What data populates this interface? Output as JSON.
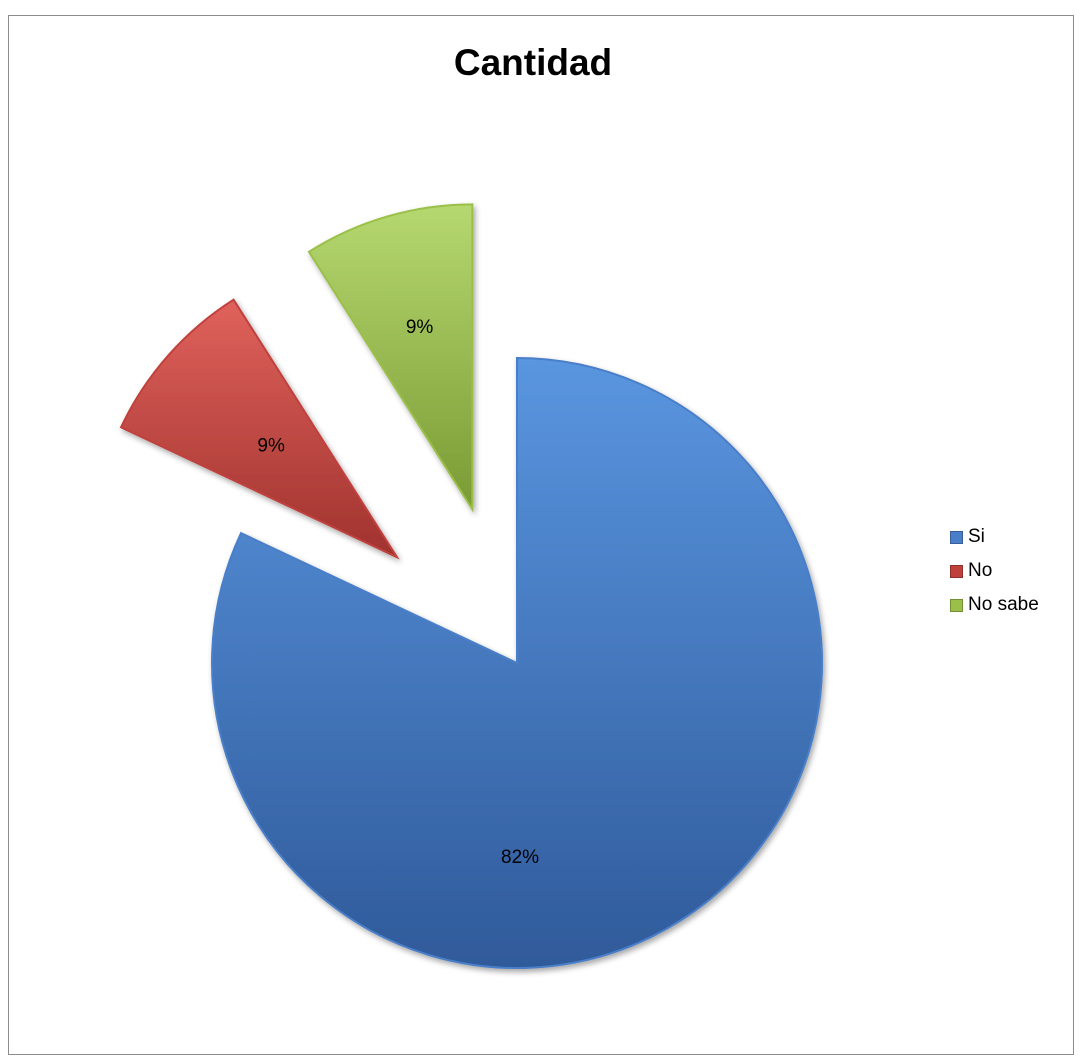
{
  "chart_data": {
    "type": "pie",
    "title": "Cantidad",
    "categories": [
      "Si",
      "No",
      "No sabe"
    ],
    "values": [
      82,
      9,
      9
    ],
    "value_labels": [
      "82%",
      "9%",
      "9%"
    ],
    "colors": [
      "#4a7ec8",
      "#c0413c",
      "#9bc04a"
    ],
    "exploded": [
      false,
      true,
      true
    ],
    "legend_position": "right"
  }
}
